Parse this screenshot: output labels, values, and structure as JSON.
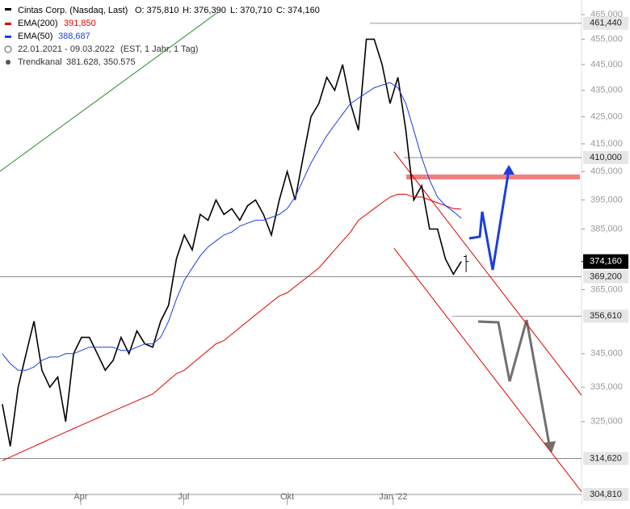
{
  "chart_data": {
    "type": "line",
    "title": "Cintas Corp. (Nasdaq, Last)",
    "ohlc": [
      {
        "value": 375.81,
        "label": "O: 375,810"
      },
      {
        "value": 376.39,
        "label": "H: 376,390"
      },
      {
        "value": 370.71,
        "label": "L: 370,710"
      },
      {
        "value": 374.16,
        "label": "C: 374,160"
      }
    ],
    "period": "22.01.2021 - 09.03.2022",
    "period_note": "(EST, 1 Jahr, 1 Tag)",
    "log_scale": true,
    "xlim": [
      -0.3,
      73.2
    ],
    "xticks": [
      {
        "value": 9.9,
        "label": "Apr"
      },
      {
        "value": 22.9,
        "label": "Jul"
      },
      {
        "value": 36,
        "label": "Okt"
      },
      {
        "value": 49.4,
        "label": "Jan '22"
      }
    ],
    "ylim": [
      302,
      471
    ],
    "yticks": [
      {
        "value": 465,
        "label": "465,000"
      },
      {
        "value": 455,
        "label": "455,000"
      },
      {
        "value": 445,
        "label": "445,000"
      },
      {
        "value": 435,
        "label": "435,000"
      },
      {
        "value": 425,
        "label": "425,000"
      },
      {
        "value": 415,
        "label": "415,000"
      },
      {
        "value": 405,
        "label": "405,000"
      },
      {
        "value": 395,
        "label": "395,000"
      },
      {
        "value": 385,
        "label": "385,000"
      },
      {
        "value": 365,
        "label": "365,000"
      },
      {
        "value": 345,
        "label": "345,000"
      },
      {
        "value": 335,
        "label": "335,000"
      },
      {
        "value": 325,
        "label": "325,000"
      }
    ],
    "series": [
      {
        "name": "Cintas Corp.",
        "color": "#000000",
        "values": [
          330,
          318,
          335,
          345,
          355,
          340,
          335,
          338,
          325,
          345,
          350,
          350,
          345,
          340,
          343,
          350,
          345,
          352,
          348,
          347,
          355,
          360,
          375,
          383,
          378,
          390,
          388,
          395,
          390,
          392,
          388,
          393,
          395,
          390,
          383,
          395,
          405,
          395,
          410,
          425,
          430,
          440,
          435,
          445,
          430,
          420,
          455,
          455,
          445,
          430,
          440,
          420,
          395,
          400,
          385,
          385,
          375,
          370,
          374.16
        ]
      },
      {
        "name": "EMA(200)",
        "color": "#e00000",
        "value_label": "391,850",
        "values": [
          314,
          315,
          316,
          317,
          318,
          319,
          320,
          321,
          322,
          323,
          324,
          325,
          326,
          327,
          328,
          329,
          330,
          331,
          332,
          333,
          335,
          337,
          339,
          340,
          342,
          344,
          346,
          348,
          349,
          351,
          353,
          355,
          357,
          359,
          361,
          363,
          364,
          366,
          368,
          370,
          372,
          375,
          378,
          381,
          384,
          388,
          390,
          392,
          394,
          396,
          397,
          397,
          396,
          396,
          395,
          394,
          393,
          392,
          391.85
        ]
      },
      {
        "name": "EMA(50)",
        "color": "#1a3fe0",
        "value_label": "388,687",
        "values": [
          345,
          342,
          340,
          340,
          341,
          343,
          344,
          344,
          345,
          345,
          346,
          347,
          347,
          347,
          347,
          346,
          346,
          347,
          348,
          348,
          350,
          355,
          362,
          368,
          372,
          376,
          379,
          381,
          383,
          384,
          386,
          387,
          388,
          388,
          389,
          390,
          392,
          396,
          402,
          408,
          413,
          418,
          422,
          426,
          430,
          432,
          434,
          436,
          437,
          438,
          436,
          430,
          420,
          410,
          402,
          396,
          393,
          391,
          388.687
        ]
      }
    ],
    "channel": {
      "name": "Trendkanal",
      "label": "381.628, 350.575",
      "values": [
        381.628,
        350.575
      ],
      "color": "#e00000"
    },
    "last_price": {
      "value": 374.16,
      "label": "374,160"
    },
    "levels": [
      {
        "value": 461.44,
        "label": "461,440"
      },
      {
        "value": 410,
        "label": "410,000"
      },
      {
        "value": 369.2,
        "label": "369,200"
      },
      {
        "value": 356.61,
        "label": "356,610"
      },
      {
        "value": 314.62,
        "label": "314,620"
      },
      {
        "value": 304.81,
        "label": "304,810"
      }
    ]
  }
}
